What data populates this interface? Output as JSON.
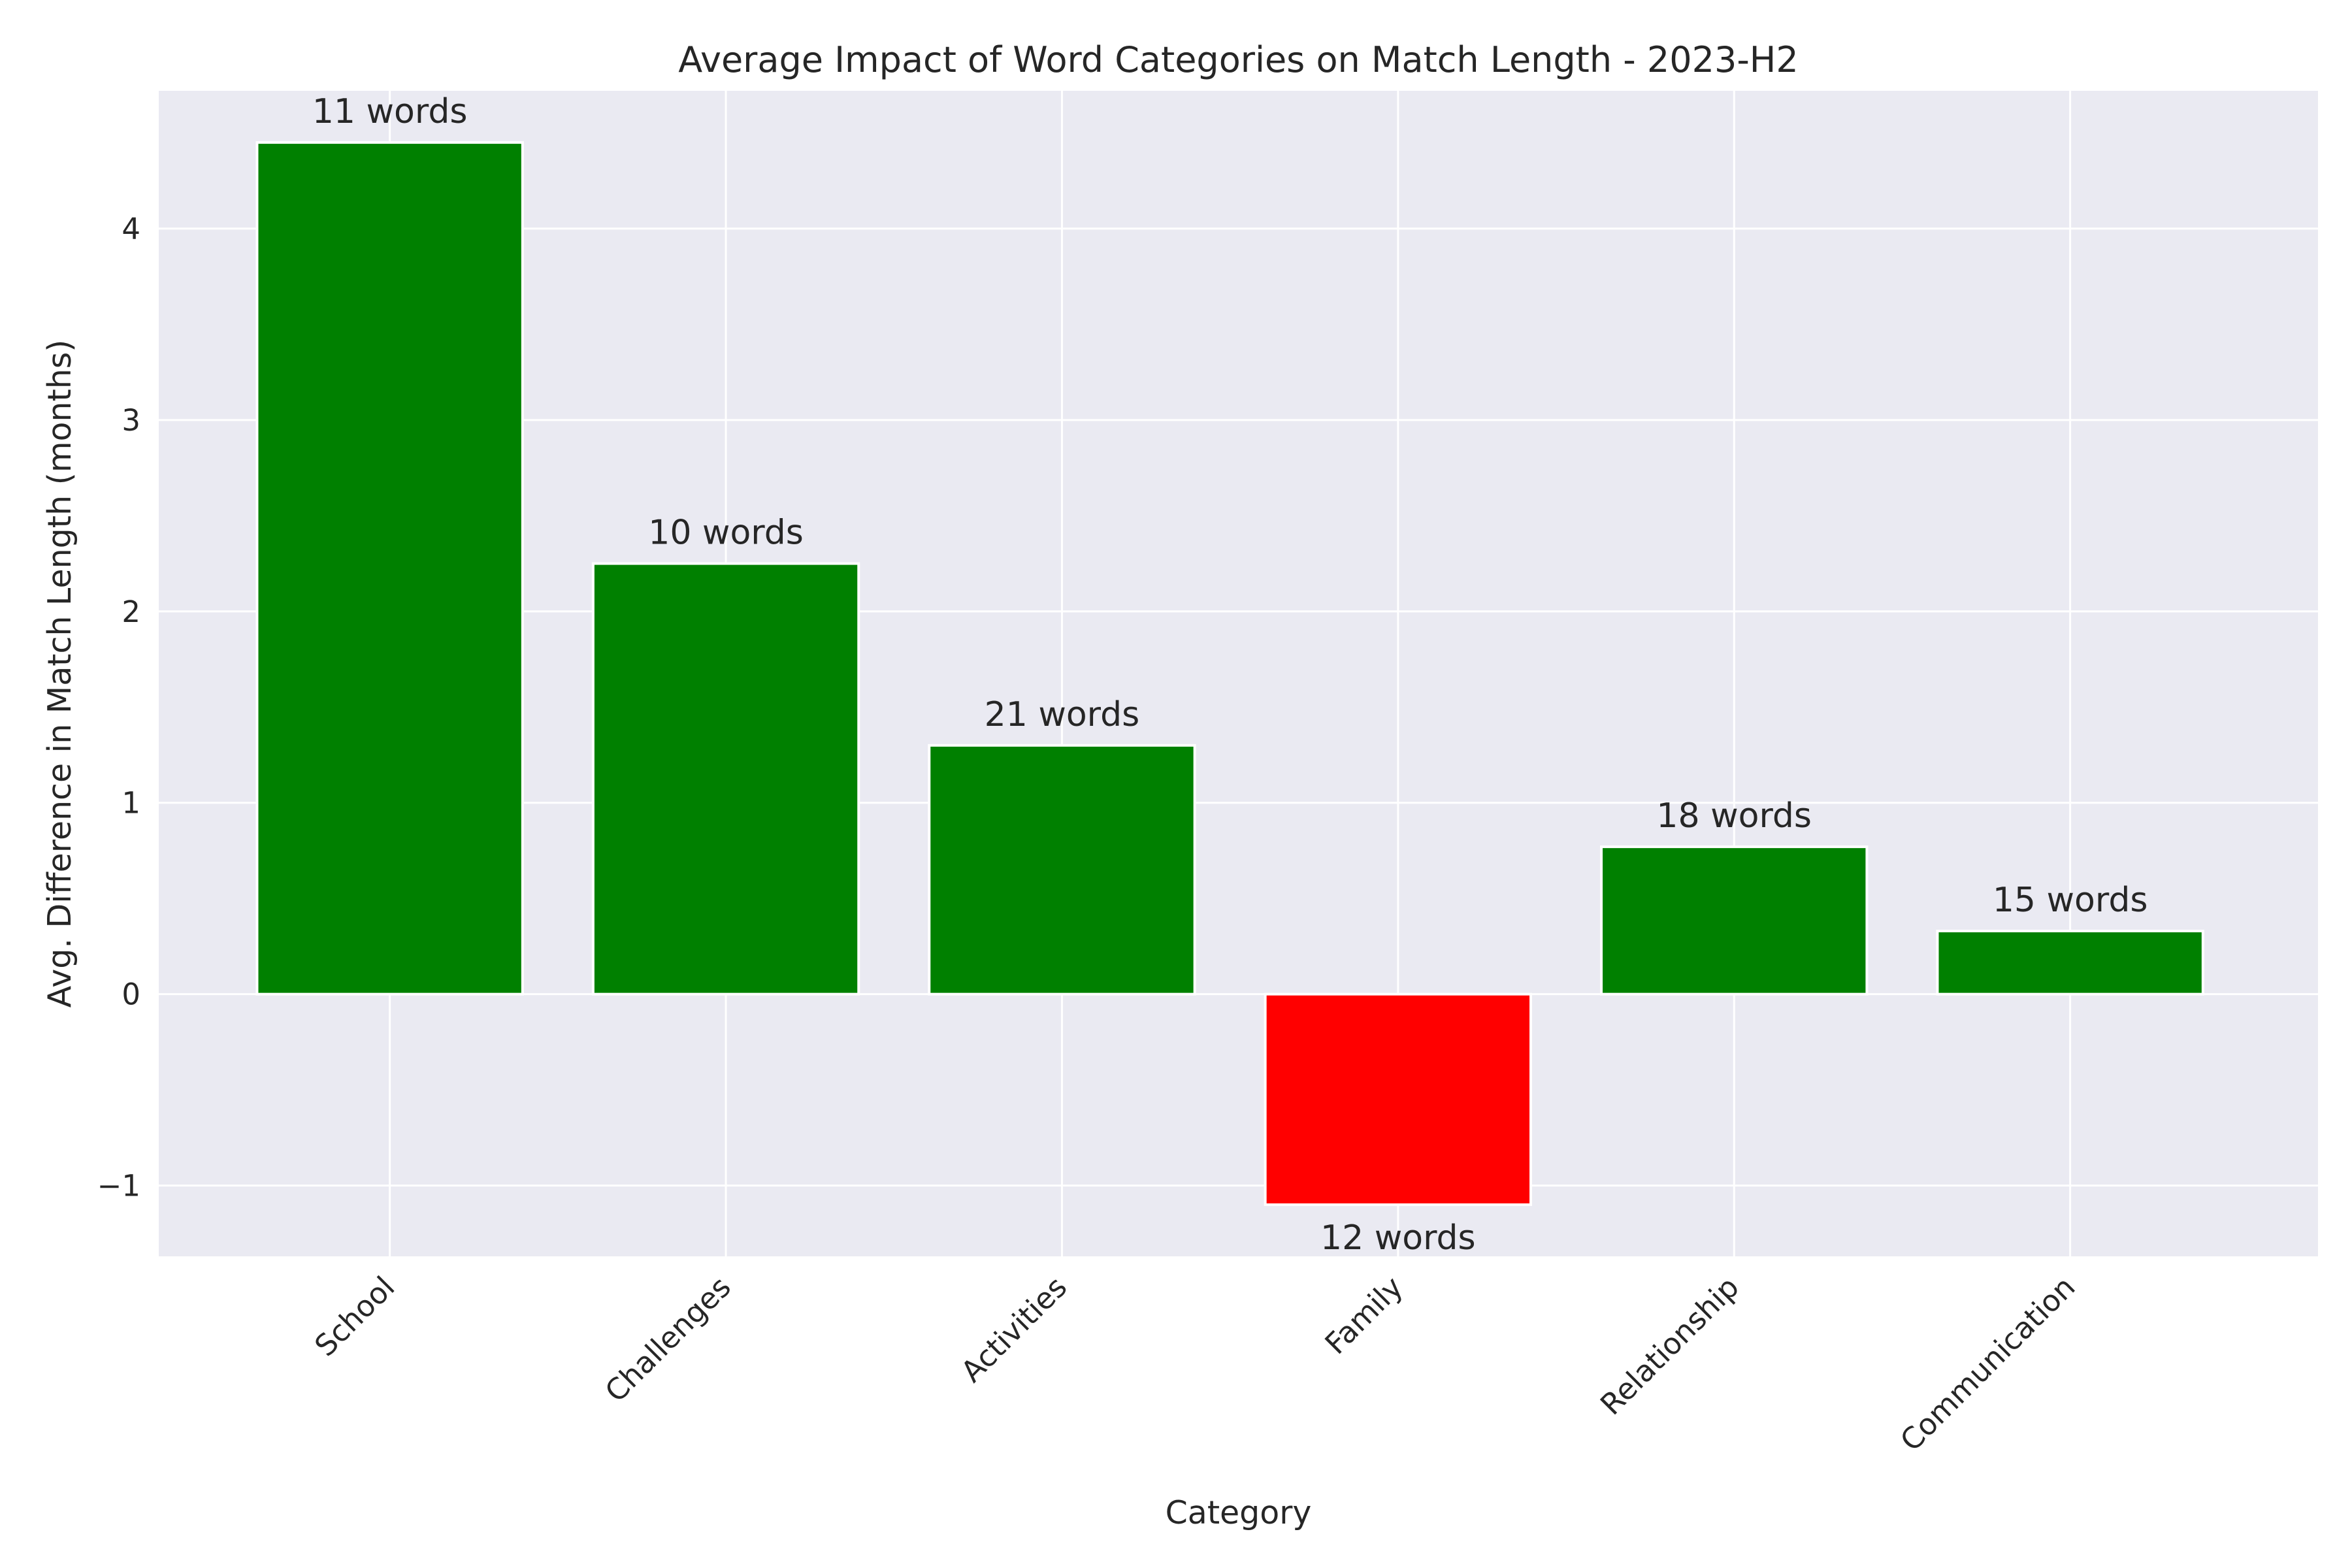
{
  "chart_data": {
    "type": "bar",
    "title": "Average Impact of Word Categories on Match Length - 2023-H2",
    "xlabel": "Category",
    "ylabel": "Avg. Difference in Match Length (months)",
    "categories": [
      "School",
      "Challenges",
      "Activities",
      "Family",
      "Relationship",
      "Communication"
    ],
    "values": [
      4.45,
      2.25,
      1.3,
      -1.1,
      0.77,
      0.33
    ],
    "data_labels": [
      "11 words",
      "10 words",
      "21 words",
      "12 words",
      "18 words",
      "15 words"
    ],
    "yticks": [
      -1,
      0,
      1,
      2,
      3,
      4
    ],
    "ytick_labels": [
      "−1",
      "0",
      "1",
      "2",
      "3",
      "4"
    ],
    "ylim": [
      -1.37,
      4.72
    ],
    "grid": true,
    "colors": {
      "positive": "#008000",
      "negative": "#ff0000",
      "plot_background": "#eaeaf2",
      "grid": "#ffffff"
    }
  }
}
